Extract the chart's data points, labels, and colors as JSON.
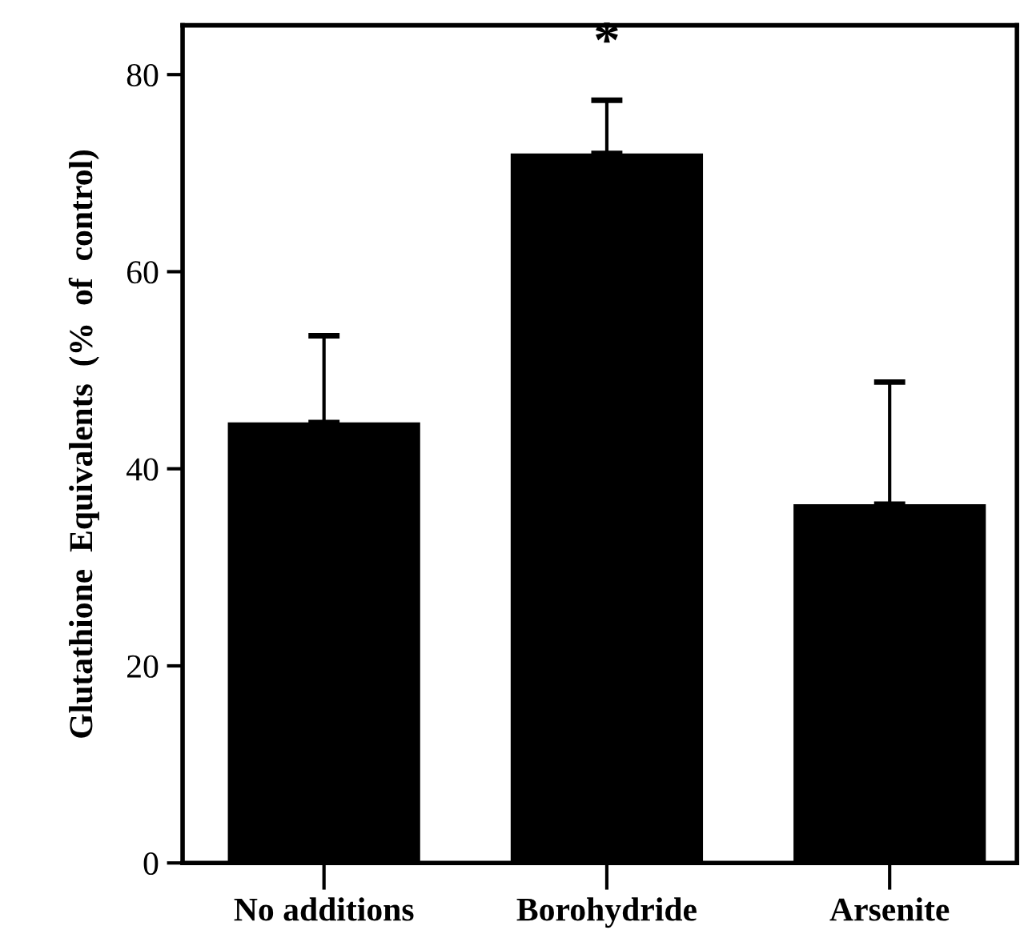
{
  "chart_data": {
    "type": "bar",
    "ylabel": "Glutathione  Equivalents  (%  of  control)",
    "categories": [
      "No additions",
      "Borohydride",
      "Arsenite"
    ],
    "values": [
      44.7,
      72.0,
      36.4
    ],
    "color": "#000000",
    "errors": [
      [
        44.7,
        53.5
      ],
      [
        72.0,
        77.4
      ],
      [
        36.4,
        48.8
      ]
    ],
    "ylim": [
      0,
      85
    ],
    "yticks": [
      0,
      20,
      40,
      60,
      80
    ],
    "grid": false,
    "annotations": [
      "*"
    ]
  }
}
